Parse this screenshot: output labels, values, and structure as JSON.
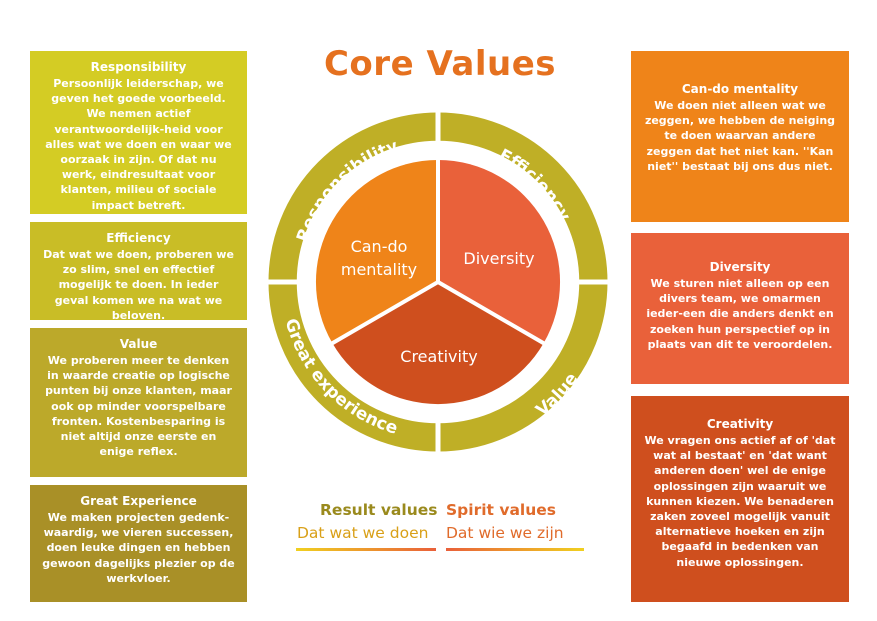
{
  "title": "Core Values",
  "colors": {
    "responsibility": "#d4cc24",
    "efficiency": "#c9bd26",
    "value": "#bca92a",
    "great_experience": "#a99027",
    "cando": "#ef8419",
    "diversity": "#e9613a",
    "creativity": "#cf4f1e",
    "result_text": "#9a8a1d",
    "spirit_text": "#e06b2b",
    "sub_text": "#d9a018",
    "title": "#e5711f",
    "ring": "#bfaf26"
  },
  "left_boxes": [
    {
      "heading": "Responsibility",
      "body": "Persoonlijk leiderschap, we geven het goede voorbeeld. We nemen actief verantwoordelijk-heid voor alles wat we doen en waar we oorzaak in zijn. Of dat nu werk, eindresultaat voor klanten, milieu of sociale impact betreft."
    },
    {
      "heading": "Efficiency",
      "body": "Dat wat we doen, proberen we zo slim, snel en effectief mogelijk te doen. In ieder geval komen we na wat we beloven."
    },
    {
      "heading": "Value",
      "body": "We proberen meer te denken in waarde creatie op logische punten bij onze klanten, maar ook op minder voorspelbare fronten. Kostenbesparing is niet altijd onze eerste en enige reflex."
    },
    {
      "heading": "Great Experience",
      "body": "We maken projecten gedenk-waardig, we vieren successen, doen leuke dingen en hebben gewoon dagelijks plezier op de werkvloer."
    }
  ],
  "right_boxes": [
    {
      "heading": "Can-do mentality",
      "body": "We doen niet alleen wat we zeggen, we hebben de neiging te doen waarvan andere zeggen dat het niet kan. ''Kan niet'' bestaat bij ons dus niet."
    },
    {
      "heading": "Diversity",
      "body": "We sturen niet alleen op een divers team, we omarmen ieder-een die anders denkt en zoeken hun perspectief op in plaats van dit te veroordelen."
    },
    {
      "heading": "Creativity",
      "body": "We vragen ons actief af of 'dat wat al bestaat' en 'dat want anderen doen' wel de enige oplossingen zijn waaruit we kunnen kiezen. We benaderen zaken zoveel mogelijk vanuit alternatieve hoeken en zijn begaafd in bedenken van nieuwe oplossingen."
    }
  ],
  "wheel": {
    "ring_labels": [
      "Responsibility",
      "Efficiency",
      "Value",
      "Great experience"
    ],
    "inner_labels": {
      "cando": [
        "Can-do",
        "mentality"
      ],
      "diversity": [
        "Diversity"
      ],
      "creativity": [
        "Creativity"
      ]
    }
  },
  "legend": {
    "result_title": "Result values",
    "result_sub": "Dat wat we doen",
    "spirit_title": "Spirit values",
    "spirit_sub": "Dat wie we zijn"
  }
}
